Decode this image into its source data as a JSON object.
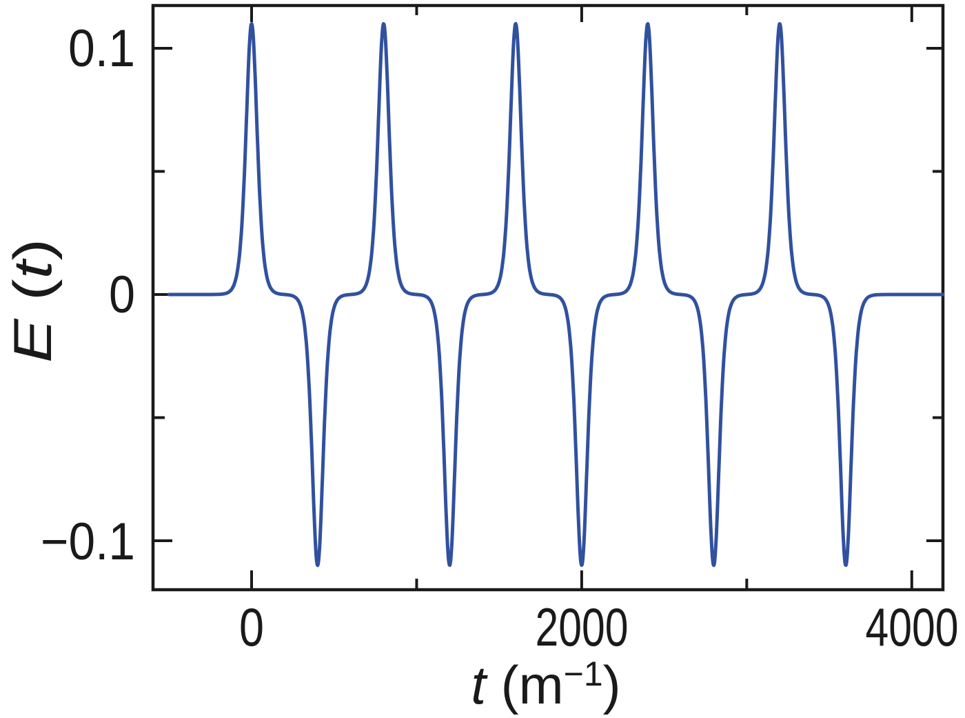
{
  "chart_data": {
    "type": "line",
    "title": "",
    "xlabel": "t (m⁻¹)",
    "ylabel": "E (t)",
    "xlabel_parts": {
      "var": "t",
      "pre": " (m",
      "sup": "−1",
      "post": ")"
    },
    "ylabel_parts": {
      "var": "E",
      "pre": " (",
      "var2": "t",
      "post": ")"
    },
    "x_tick_labels": [
      "0",
      "2000",
      "4000"
    ],
    "x_ticks_major": [
      0,
      2000,
      4000
    ],
    "x_ticks_minor": [
      1000,
      3000
    ],
    "y_tick_labels": [
      "0.1",
      "0",
      "−0.1"
    ],
    "y_ticks_major": [
      0.1,
      0,
      -0.1
    ],
    "y_ticks_minor": [
      0.05,
      -0.05
    ],
    "xlim": [
      -500,
      4189
    ],
    "ylim": [
      -0.12,
      0.117
    ],
    "grid": false,
    "legend": null,
    "frame": "box-with-mirrored-inward-ticks",
    "axis_color": "#1a1a1a",
    "line": {
      "color": "#31519f",
      "width": 5
    },
    "signal": {
      "description": "Periodic train of narrow alternating-sign pulses (sech^2 shape), flat at E=0 between pulses",
      "amplitude": 0.11,
      "pulse_fwhm_t": 80,
      "period_t": 800,
      "positive_peak_times": [
        0,
        800,
        1600,
        2400,
        3200
      ],
      "negative_peak_times": [
        400,
        1200,
        2000,
        2800,
        3600
      ],
      "peak_value": 0.11,
      "trough_value": -0.11
    }
  }
}
